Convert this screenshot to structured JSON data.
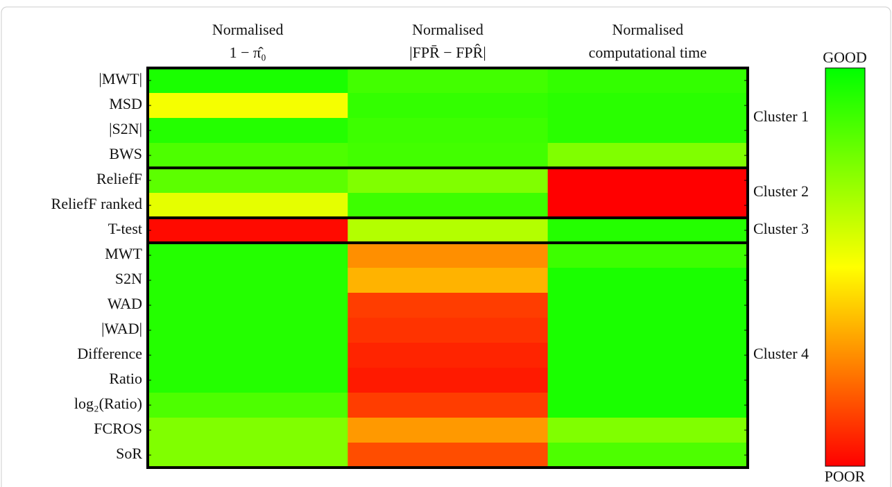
{
  "chart_data": {
    "type": "heatmap",
    "columns": [
      [
        "Normalised",
        "1 − π̂₀"
      ],
      [
        "Normalised",
        "|FPR̄ − FPR̂|"
      ],
      [
        "Normalised",
        "computational time"
      ]
    ],
    "rows": [
      "|MWT|",
      "MSD",
      "|S2N|",
      "BWS",
      "ReliefF",
      "ReliefF ranked",
      "T-test",
      "MWT",
      "S2N",
      "WAD",
      "|WAD|",
      "Difference",
      "Ratio",
      "log₂(Ratio)",
      "FCROS",
      "SoR"
    ],
    "values": [
      [
        0.95,
        0.87,
        0.9
      ],
      [
        0.52,
        0.9,
        0.92
      ],
      [
        0.93,
        0.88,
        0.92
      ],
      [
        0.85,
        0.87,
        0.75
      ],
      [
        0.82,
        0.75,
        0.0
      ],
      [
        0.55,
        0.88,
        0.0
      ],
      [
        0.02,
        0.65,
        0.93
      ],
      [
        0.93,
        0.28,
        0.88
      ],
      [
        0.93,
        0.35,
        0.95
      ],
      [
        0.93,
        0.12,
        0.95
      ],
      [
        0.93,
        0.1,
        0.95
      ],
      [
        0.93,
        0.07,
        0.95
      ],
      [
        0.93,
        0.05,
        0.95
      ],
      [
        0.85,
        0.12,
        0.95
      ],
      [
        0.75,
        0.3,
        0.75
      ],
      [
        0.75,
        0.15,
        0.85
      ]
    ],
    "clusters": [
      {
        "name": "Cluster 1",
        "rows": 4
      },
      {
        "name": "Cluster 2",
        "rows": 2
      },
      {
        "name": "Cluster 3",
        "rows": 1
      },
      {
        "name": "Cluster 4",
        "rows": 9
      }
    ],
    "zlim": [
      0,
      1
    ],
    "colormap": [
      "#ff0000",
      "#ffff00",
      "#00ff00"
    ],
    "colorbar": {
      "top_label": "GOOD",
      "bottom_label": "POOR"
    }
  }
}
